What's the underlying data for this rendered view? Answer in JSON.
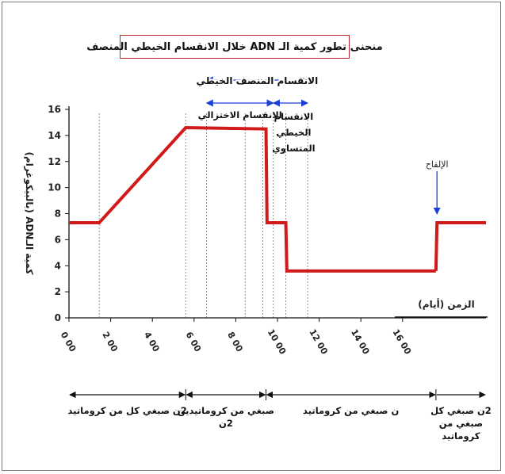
{
  "chart_data": {
    "type": "line",
    "title": "منحنى تطور كمية الـ ADN خلال الانقسام الخيطي المنصف",
    "ylabel": "كمية الـADN (بالبيكوغرام)",
    "xlabel": "الزمن (أيام)",
    "xlim": [
      0,
      20
    ],
    "ylim": [
      0,
      16
    ],
    "x_ticks": [
      0,
      2,
      4,
      6,
      8,
      10,
      12,
      14,
      16
    ],
    "x_tick_labels": [
      "0 00",
      "2 00",
      "4 00",
      "6 00",
      "8 00",
      "10 00",
      "12 00",
      "14 00",
      "16 00"
    ],
    "y_ticks": [
      0,
      2,
      4,
      6,
      8,
      10,
      12,
      14,
      16
    ],
    "y_tick_labels": [
      "0",
      "2",
      "4",
      "6",
      "8",
      "10",
      "12",
      "14",
      "16"
    ],
    "series": [
      {
        "color": "#d11a1a",
        "segments": [
          {
            "x": [
              0,
              1.45,
              5.6,
              9.45,
              9.5,
              10.4,
              10.45,
              17.6
            ],
            "y": [
              7.3,
              7.3,
              14.6,
              14.5,
              7.3,
              7.3,
              3.6,
              3.6
            ]
          },
          {
            "x": [
              17.6,
              17.65,
              20
            ],
            "y": [
              3.6,
              7.3,
              7.3
            ]
          }
        ]
      }
    ],
    "guides_x": [
      1.45,
      5.6,
      6.6,
      8.45,
      9.3,
      9.8,
      10.4,
      11.45
    ],
    "annotations": [
      {
        "text": "الانقسام المنصف الخيطي",
        "x_from": 6.6,
        "x_to": 11.45
      },
      {
        "text": "الانقسام الاختزالي",
        "x_from": 6.6,
        "x_to": 9.8
      },
      {
        "lines": [
          "الانقسام",
          "الخيطي",
          "المتساوي"
        ],
        "x_from": 9.8,
        "x_to": 11.45
      },
      {
        "text": "الإلقاح",
        "x": 17.65
      }
    ],
    "phases": [
      {
        "label": "2ن صبغي كل من كروماتيد",
        "x_from": 0,
        "x_to": 5.6
      },
      {
        "label": "صبغي من كروماتيدين",
        "label2": "2ن",
        "x_from": 5.6,
        "x_to": 9.45
      },
      {
        "label": "ن صبغي من كروماتيد",
        "x_from": 9.45,
        "x_to": 17.6
      },
      {
        "label": "2ن صبغي كل",
        "label2": "صبغي من",
        "label3": "كروماتيد",
        "x_from": 17.6,
        "x_to": 20
      }
    ],
    "grid": false,
    "legend": "none"
  }
}
